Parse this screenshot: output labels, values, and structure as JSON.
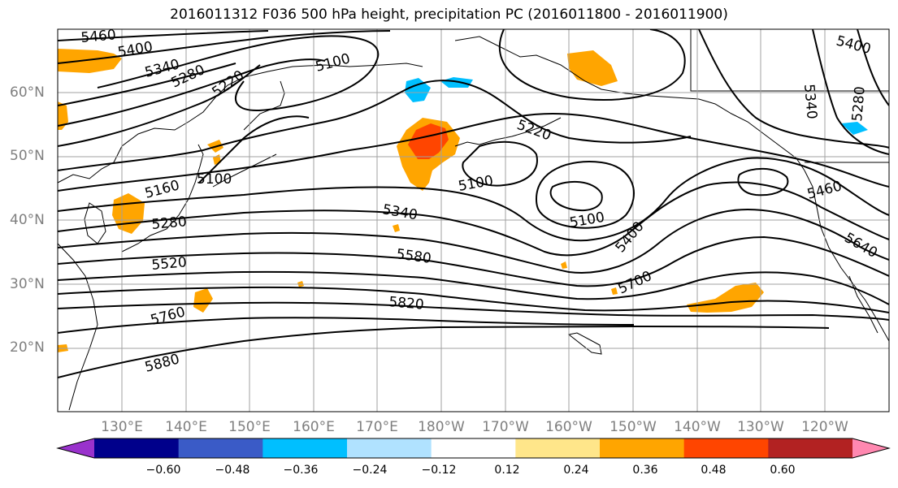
{
  "title": "2016011312 F036 500 hPa height, precipitation PC (2016011800 - 2016011900)",
  "latitude_labels": [
    "60°N",
    "50°N",
    "40°N",
    "30°N",
    "20°N"
  ],
  "longitude_labels": [
    "130°E",
    "140°E",
    "150°E",
    "160°E",
    "170°E",
    "180°W",
    "170°W",
    "160°W",
    "150°W",
    "140°W",
    "130°W",
    "120°W"
  ],
  "contour_labels": [
    "5460",
    "5400",
    "5340",
    "5280",
    "5220",
    "5100",
    "5220",
    "5100",
    "5100",
    "5160",
    "5100",
    "5280",
    "5340",
    "5580",
    "5520",
    "5400",
    "5700",
    "5760",
    "5820",
    "5880",
    "5460",
    "5640",
    "5340",
    "5280",
    "5400"
  ],
  "colorbar": {
    "ticks": [
      "−0.60",
      "−0.48",
      "−0.36",
      "−0.24",
      "−0.12",
      "0.12",
      "0.24",
      "0.36",
      "0.48",
      "0.60"
    ],
    "colors": [
      "#9932cc",
      "#00008b",
      "#3a5bc7",
      "#00bfff",
      "#b0e2ff",
      "#ffffff",
      "#ffe68a",
      "#ffa500",
      "#ff4500",
      "#b22222",
      "#ff88b0"
    ]
  },
  "colors": {
    "positive_shading": "#ffa500",
    "strong_positive": "#ff4500",
    "negative_shading": "#00bfff",
    "contour": "#000000",
    "grid": "#a0a0a0",
    "axis_labels": "#7f7f7f"
  }
}
